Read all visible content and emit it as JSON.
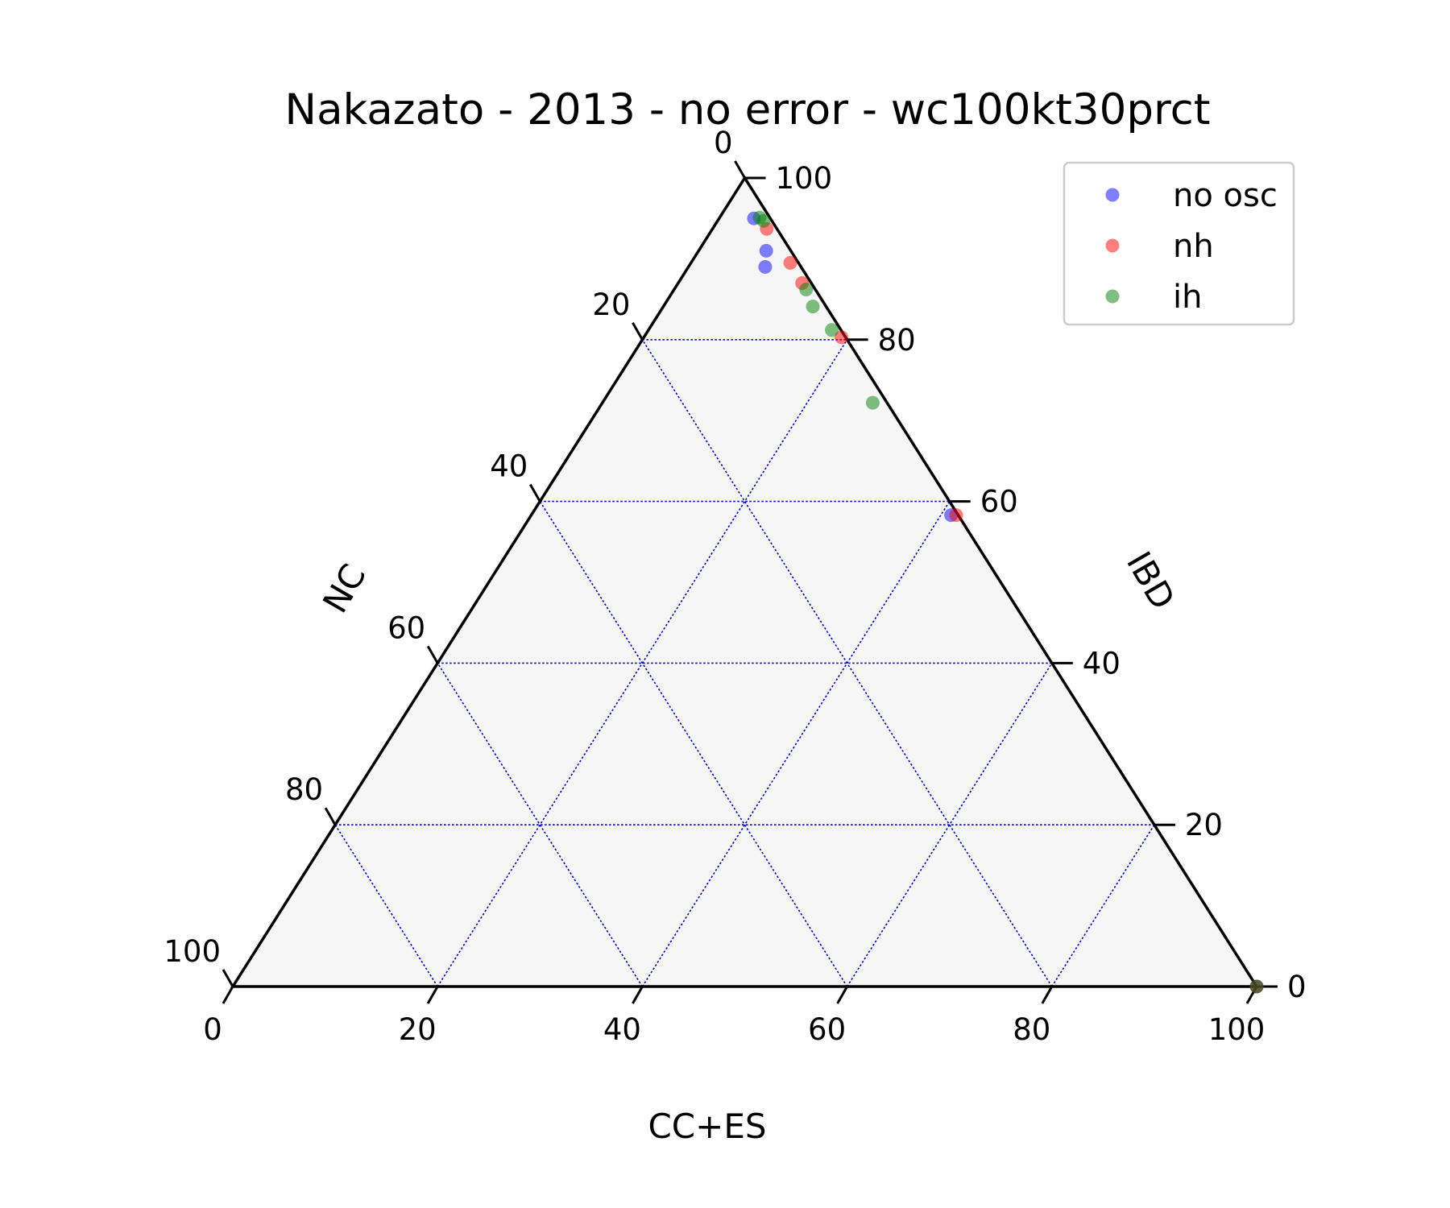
{
  "chart_data": {
    "type": "scatter",
    "subtype": "ternary",
    "title": "Nakazato - 2013 - no error - wc100kt30prct",
    "axes": {
      "bottom": {
        "label": "CC+ES",
        "ticks": [
          0,
          20,
          40,
          60,
          80,
          100
        ]
      },
      "left": {
        "label": "NC",
        "ticks": [
          0,
          20,
          40,
          60,
          80,
          100
        ]
      },
      "right": {
        "label": "IBD",
        "ticks": [
          0,
          20,
          40,
          60,
          80,
          100
        ]
      }
    },
    "range": [
      0,
      100
    ],
    "grid": true,
    "legend_position": "top-right",
    "series": [
      {
        "name": "no osc",
        "color": "#0000ff",
        "points": [
          {
            "ibd": 95.0,
            "cces": 3.4,
            "nc": 1.6
          },
          {
            "ibd": 91.0,
            "cces": 6.6,
            "nc": 2.4
          },
          {
            "ibd": 89.0,
            "cces": 7.5,
            "nc": 3.5
          },
          {
            "ibd": 58.3,
            "cces": 41.0,
            "nc": 0.7
          },
          {
            "ibd": 0.0,
            "cces": 100.0,
            "nc": 0.0
          }
        ]
      },
      {
        "name": "nh",
        "color": "#ff0000",
        "points": [
          {
            "ibd": 93.7,
            "cces": 5.3,
            "nc": 1.0
          },
          {
            "ibd": 89.5,
            "cces": 9.7,
            "nc": 0.8
          },
          {
            "ibd": 87.0,
            "cces": 12.1,
            "nc": 0.9
          },
          {
            "ibd": 80.3,
            "cces": 19.3,
            "nc": 0.4
          },
          {
            "ibd": 58.3,
            "cces": 41.5,
            "nc": 0.2
          },
          {
            "ibd": 0.0,
            "cces": 100.0,
            "nc": 0.0
          }
        ]
      },
      {
        "name": "ih",
        "color": "#008000",
        "points": [
          {
            "ibd": 94.7,
            "cces": 4.5,
            "nc": 0.8
          },
          {
            "ibd": 95.1,
            "cces": 3.9,
            "nc": 1.0
          },
          {
            "ibd": 86.2,
            "cces": 12.9,
            "nc": 0.9
          },
          {
            "ibd": 84.1,
            "cces": 14.6,
            "nc": 1.3
          },
          {
            "ibd": 81.2,
            "cces": 17.9,
            "nc": 0.9
          },
          {
            "ibd": 72.2,
            "cces": 26.4,
            "nc": 1.4
          },
          {
            "ibd": 0.0,
            "cces": 100.0,
            "nc": 0.0
          }
        ]
      }
    ]
  }
}
